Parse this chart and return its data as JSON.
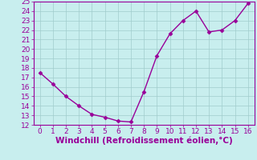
{
  "x": [
    0,
    1,
    2,
    3,
    4,
    5,
    6,
    7,
    8,
    9,
    10,
    11,
    12,
    13,
    14,
    15,
    16
  ],
  "y": [
    17.5,
    16.3,
    15.0,
    14.0,
    13.1,
    12.8,
    12.4,
    12.3,
    15.5,
    19.3,
    21.6,
    23.0,
    24.0,
    21.8,
    22.0,
    23.0,
    24.8
  ],
  "line_color": "#990099",
  "marker": "D",
  "marker_size": 2.5,
  "bg_color": "#c8eeee",
  "grid_color": "#a0cccc",
  "xlabel": "Windchill (Refroidissement éolien,°C)",
  "xlabel_color": "#990099",
  "xlabel_fontsize": 7.5,
  "xlim": [
    -0.5,
    16.5
  ],
  "ylim": [
    12,
    25
  ],
  "yticks": [
    12,
    13,
    14,
    15,
    16,
    17,
    18,
    19,
    20,
    21,
    22,
    23,
    24,
    25
  ],
  "xticks": [
    0,
    1,
    2,
    3,
    4,
    5,
    6,
    7,
    8,
    9,
    10,
    11,
    12,
    13,
    14,
    15,
    16
  ],
  "tick_fontsize": 6.5,
  "tick_color": "#990099",
  "spine_color": "#990099",
  "linewidth": 1.0
}
